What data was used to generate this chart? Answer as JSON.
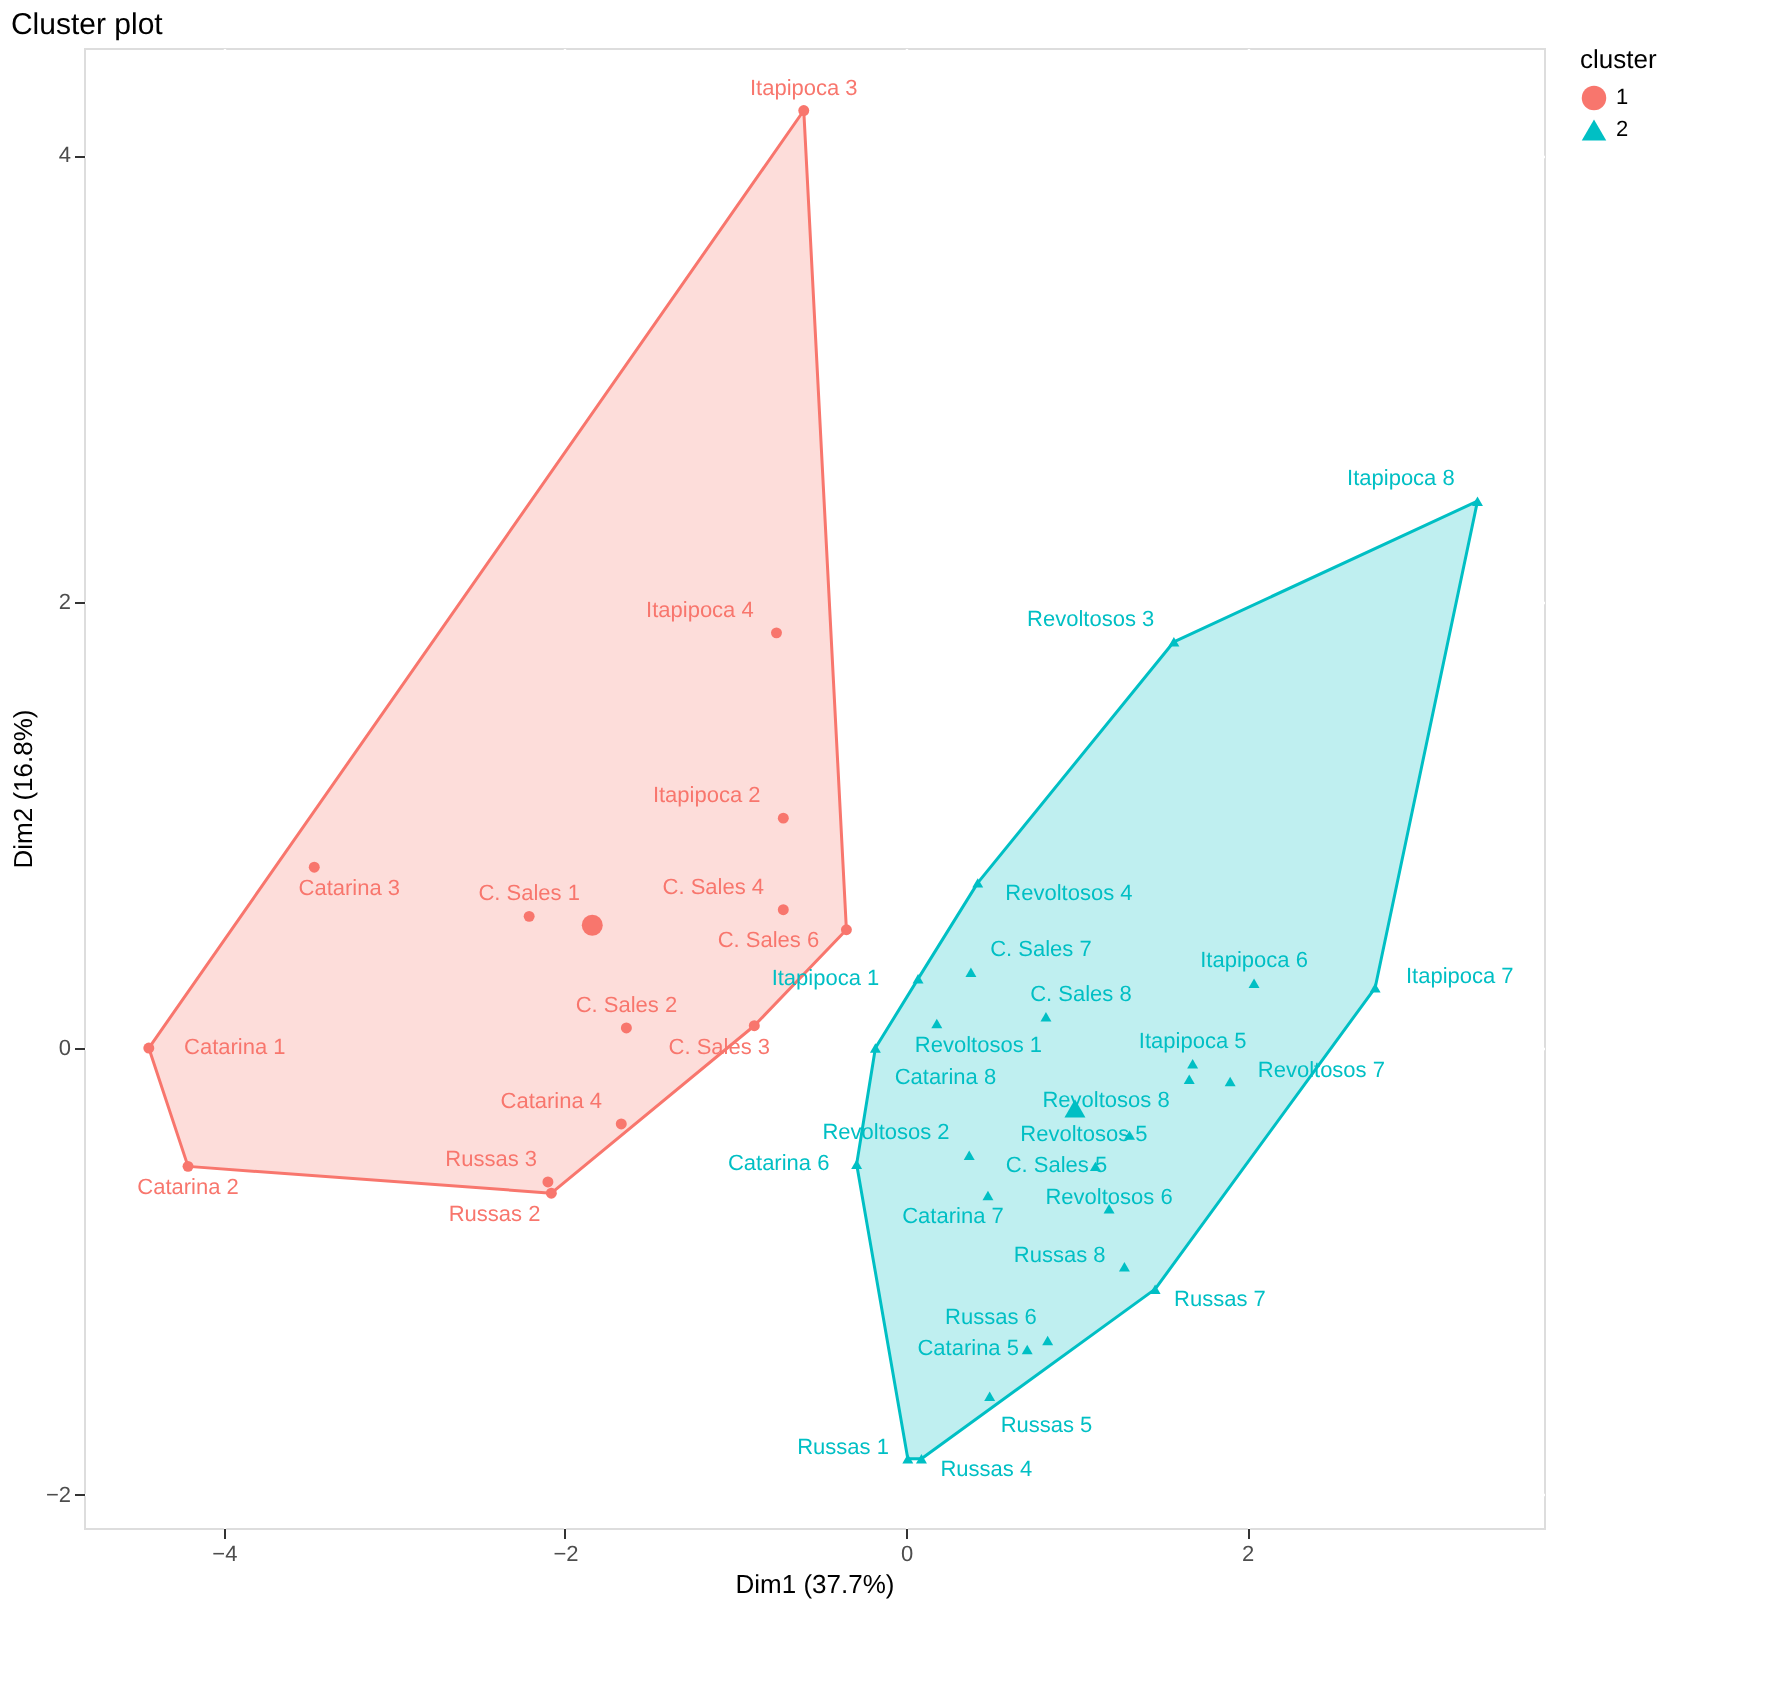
{
  "chart_data": {
    "type": "scatter",
    "title": "Cluster plot",
    "xlabel": "Dim1 (37.7%)",
    "ylabel": "Dim2 (16.8%)",
    "legend_title": "cluster",
    "legend": "right",
    "grid": true,
    "xlim": [
      -4.82,
      3.74
    ],
    "ylim": [
      -2.15,
      4.48
    ],
    "xticks": [
      -4,
      -2,
      0,
      2
    ],
    "yticks": [
      -2,
      0,
      2,
      4
    ],
    "series": [
      {
        "type": "area",
        "color": "#f8766d",
        "x": [
          -0.6,
          -0.35,
          -0.89,
          -2.08,
          -4.21,
          -4.44,
          -0.6
        ],
        "values": [
          4.2,
          0.53,
          0.1,
          -0.65,
          -0.53,
          0.0,
          4.2
        ]
      },
      {
        "type": "area",
        "color": "#00bfc4",
        "x": [
          3.35,
          2.75,
          1.46,
          0.09,
          0.01,
          -0.29,
          -0.18,
          0.07,
          0.42,
          1.57,
          3.35
        ],
        "values": [
          2.45,
          0.27,
          -1.08,
          -1.84,
          -1.84,
          -0.52,
          0.0,
          0.31,
          0.74,
          1.82,
          2.45
        ]
      },
      {
        "name": "1",
        "color": "#f8766d",
        "marker": "circle",
        "x": [
          -0.6,
          -0.76,
          -0.72,
          -3.47,
          -2.21,
          -0.72,
          -0.35,
          -1.64,
          -0.89,
          -4.44,
          -1.67,
          -4.21,
          -2.1,
          -2.08
        ],
        "values": [
          4.2,
          1.86,
          1.03,
          0.81,
          0.59,
          0.62,
          0.53,
          0.09,
          0.1,
          0.0,
          -0.34,
          -0.53,
          -0.6,
          -0.65
        ],
        "value_labels": [
          "Itapipoca 3",
          "Itapipoca 4",
          "Itapipoca 2",
          "Catarina 3",
          "C. Sales 1",
          "C. Sales 4",
          "C. Sales 6",
          "C. Sales 2",
          "C. Sales 3",
          "Catarina 1",
          "Catarina 4",
          "Catarina 2",
          "Russas 3",
          "Russas 2"
        ]
      },
      {
        "name": "2",
        "color": "#00bfc4",
        "marker": "triangle",
        "x": [
          3.35,
          1.57,
          0.42,
          0.38,
          0.07,
          0.18,
          0.82,
          2.04,
          2.75,
          -0.18,
          1.68,
          1.66,
          1.9,
          1.31,
          1.11,
          0.37,
          -0.29,
          0.48,
          1.19,
          1.28,
          1.46,
          0.83,
          0.71,
          0.49,
          0.01,
          0.09
        ],
        "values": [
          2.45,
          1.82,
          0.74,
          0.34,
          0.31,
          0.11,
          0.14,
          0.29,
          0.27,
          0.0,
          -0.07,
          -0.14,
          -0.15,
          -0.39,
          -0.53,
          -0.48,
          -0.52,
          -0.66,
          -0.72,
          -0.98,
          -1.08,
          -1.31,
          -1.35,
          -1.56,
          -1.84,
          -1.84
        ],
        "value_labels": [
          "Itapipoca 8",
          "Revoltosos 3",
          "Revoltosos 4",
          "C. Sales 7",
          "Itapipoca 1",
          "Revoltosos 1",
          "C. Sales 8",
          "Itapipoca 6",
          "Itapipoca 7",
          "Catarina 8",
          "Itapipoca 5",
          "Revoltosos 8",
          "Revoltosos 7",
          "Revoltosos 5",
          "C. Sales 5",
          "Revoltosos 2",
          "Catarina 6",
          "Catarina 7",
          "Revoltosos 6",
          "Russas 8",
          "Russas 7",
          "Russas 6",
          "Catarina 5",
          "Russas 5",
          "Russas 1",
          "Russas 4"
        ]
      },
      {
        "color": "#f8766d",
        "marker": "circle",
        "x": [
          -1.84
        ],
        "values": [
          0.55
        ]
      },
      {
        "color": "#00bfc4",
        "marker": "triangle",
        "x": [
          0.99
        ],
        "values": [
          -0.27
        ]
      }
    ]
  }
}
